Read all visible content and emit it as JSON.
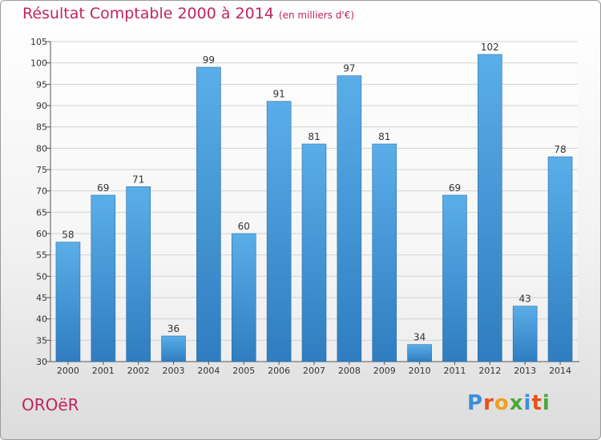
{
  "header": {
    "title": "Résultat Comptable 2000 à 2014",
    "subtitle": "(en milliers d'€)"
  },
  "footer": {
    "city": "OROëR",
    "logo_text": "Proxiti"
  },
  "colors": {
    "title": "#c0245e",
    "bar_top": "#5aaee8",
    "bar_bottom": "#2f7dc0",
    "logo_letters": [
      "#3a8fd8",
      "#e8501a",
      "#f0a020",
      "#4aa83c",
      "#3a8fd8",
      "#e8501a",
      "#4aa83c"
    ]
  },
  "chart_data": {
    "type": "bar",
    "title": "Résultat Comptable 2000 à 2014",
    "subtitle": "(en milliers d'€)",
    "categories": [
      "2000",
      "2001",
      "2002",
      "2003",
      "2004",
      "2005",
      "2006",
      "2007",
      "2008",
      "2009",
      "2010",
      "2011",
      "2012",
      "2013",
      "2014"
    ],
    "values": [
      58,
      69,
      71,
      36,
      99,
      60,
      91,
      81,
      97,
      81,
      34,
      69,
      102,
      43,
      78
    ],
    "ylim": [
      30,
      105
    ],
    "yticks": [
      30,
      35,
      40,
      45,
      50,
      55,
      60,
      65,
      70,
      75,
      80,
      85,
      90,
      95,
      100,
      105
    ],
    "grid": true,
    "data_labels": true
  }
}
